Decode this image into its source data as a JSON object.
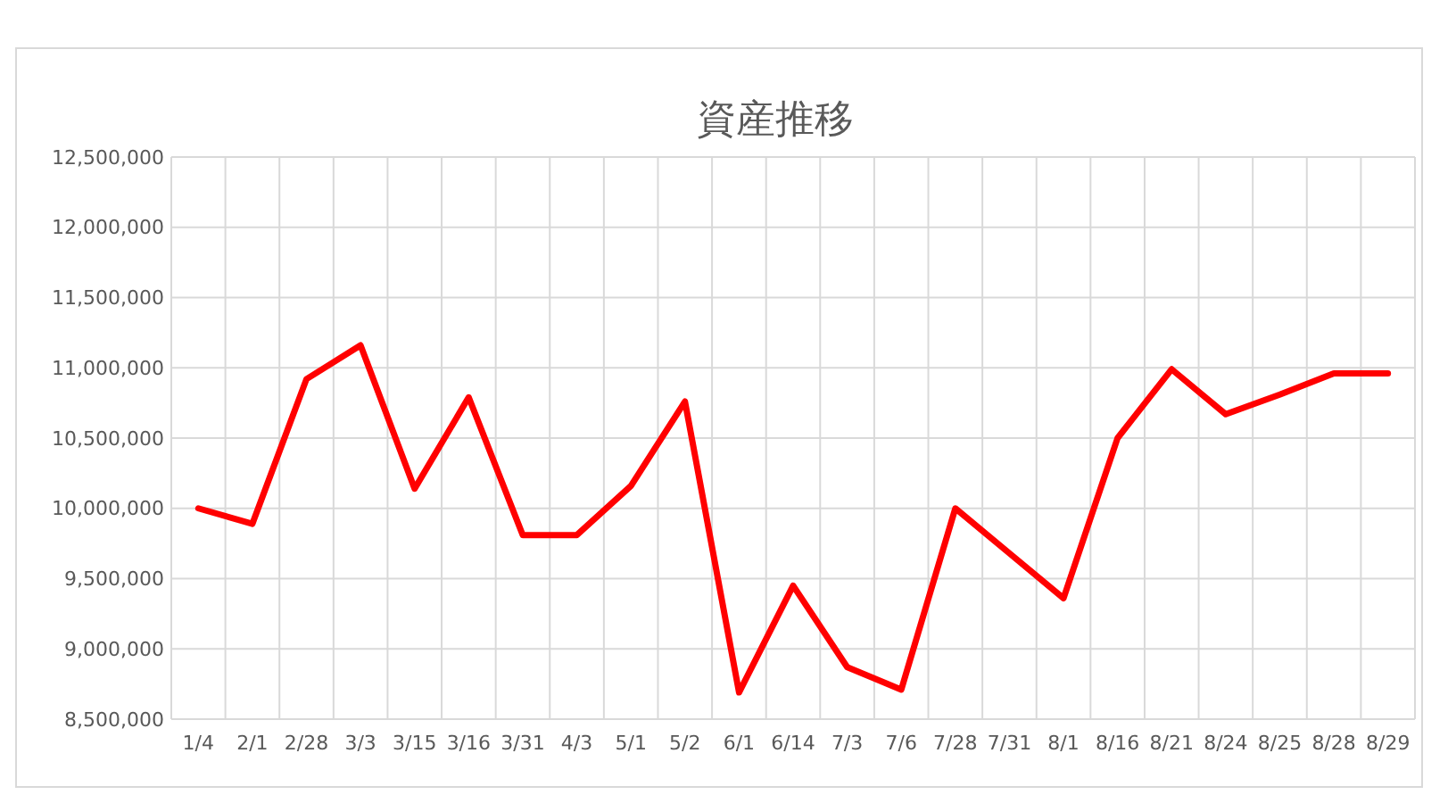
{
  "chart_data": {
    "type": "line",
    "title": "資産推移",
    "categories": [
      "1/4",
      "2/1",
      "2/28",
      "3/3",
      "3/15",
      "3/16",
      "3/31",
      "4/3",
      "5/1",
      "5/2",
      "6/1",
      "6/14",
      "7/3",
      "7/6",
      "7/28",
      "7/31",
      "8/1",
      "8/16",
      "8/21",
      "8/24",
      "8/25",
      "8/28",
      "8/29"
    ],
    "series": [
      {
        "color": "#ff0000",
        "values": [
          10000000,
          9890000,
          10920000,
          11160000,
          10140000,
          10790000,
          9810000,
          9810000,
          10160000,
          10760000,
          8690000,
          9450000,
          8870000,
          8710000,
          10000000,
          9680000,
          9360000,
          10500000,
          10990000,
          10670000,
          10810000,
          10960000,
          10960000
        ]
      }
    ],
    "ylim": [
      8500000,
      12500000
    ],
    "yticks": [
      {
        "value": 8500000,
        "label": "8,500,000"
      },
      {
        "value": 9000000,
        "label": "9,000,000"
      },
      {
        "value": 9500000,
        "label": "9,500,000"
      },
      {
        "value": 10000000,
        "label": "10,000,000"
      },
      {
        "value": 10500000,
        "label": "10,500,000"
      },
      {
        "value": 11000000,
        "label": "11,000,000"
      },
      {
        "value": 11500000,
        "label": "11,500,000"
      },
      {
        "value": 12000000,
        "label": "12,000,000"
      },
      {
        "value": 12500000,
        "label": "12,500,000"
      }
    ],
    "grid": true,
    "marker": "none",
    "line_style": "solid"
  }
}
